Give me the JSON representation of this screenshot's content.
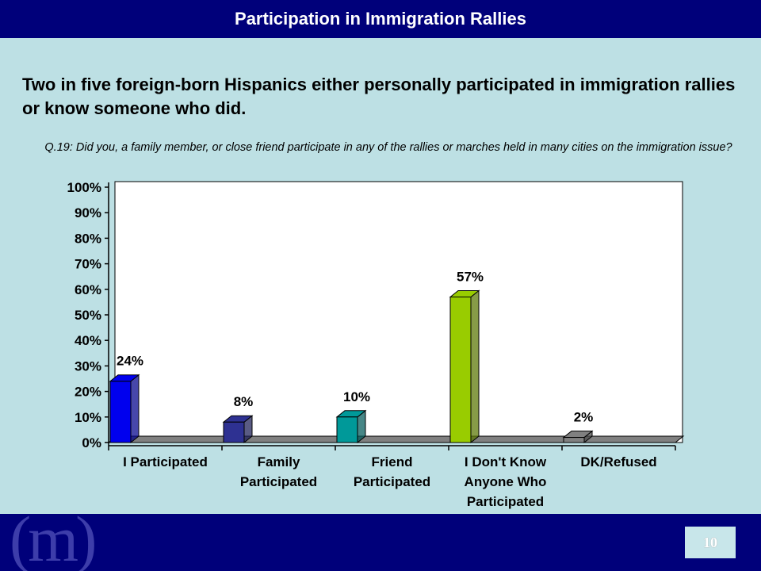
{
  "slide": {
    "title": "Participation in Immigration Rallies",
    "headline": "Two in five foreign-born Hispanics either personally participated in immigration rallies or know someone who did.",
    "question": "Q.19:  Did you, a family member, or close friend participate in any of the rallies or marches held in many cities on the immigration issue?",
    "logo_text": "(m)",
    "page_number": "10"
  },
  "colors": {
    "title_bar": "#00007a",
    "background": "#bde0e4"
  },
  "chart_data": {
    "type": "bar",
    "categories": [
      [
        "I Participated"
      ],
      [
        "Family",
        "Participated"
      ],
      [
        "Friend",
        "Participated"
      ],
      [
        "I Don't Know",
        "Anyone Who",
        "Participated"
      ],
      [
        "DK/Refused"
      ]
    ],
    "values": [
      24,
      8,
      10,
      57,
      2
    ],
    "data_labels": [
      "24%",
      "8%",
      "10%",
      "57%",
      "2%"
    ],
    "bar_colors": [
      "#0000ee",
      "#2e3192",
      "#009999",
      "#99cc00",
      "#808080"
    ],
    "yticks": [
      "0%",
      "10%",
      "20%",
      "30%",
      "40%",
      "50%",
      "60%",
      "70%",
      "80%",
      "90%",
      "100%"
    ],
    "ylim": [
      0,
      100
    ],
    "grid": false,
    "legend": "none",
    "xlabel": "",
    "ylabel": ""
  }
}
